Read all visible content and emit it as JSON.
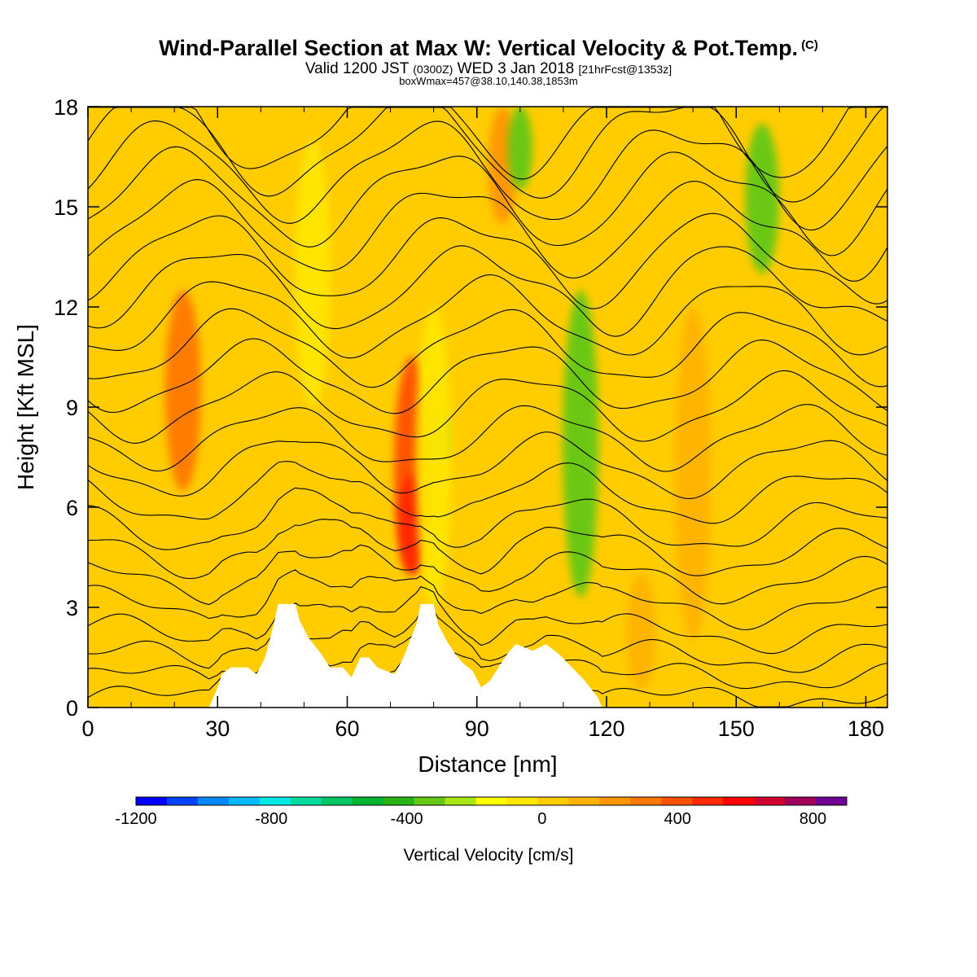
{
  "header": {
    "title": "Wind-Parallel Section at Max W: Vertical Velocity & Pot.Temp.",
    "title_suffix": "(C)",
    "valid_prefix": "Valid 1200 JST",
    "valid_utc": "(0300Z)",
    "valid_date": "WED 3 Jan 2018",
    "valid_fcst": "[21hrFcst@1353z]",
    "box_info": "boxWmax=457@38.10,140.38,1853m"
  },
  "chart_data": {
    "type": "heatmap",
    "xlabel": "Distance [nm]",
    "ylabel": "Height [Kft MSL]",
    "xlim": [
      0,
      185
    ],
    "ylim": [
      0,
      18
    ],
    "x_ticks": [
      "0",
      "30",
      "60",
      "90",
      "120",
      "150",
      "180"
    ],
    "y_ticks": [
      "0",
      "3",
      "6",
      "9",
      "12",
      "15",
      "18"
    ],
    "colorbar": {
      "label": "Vertical Velocity [cm/s]",
      "range": [
        -1200,
        900
      ],
      "tick_labels": [
        "-1200",
        "-800",
        "-400",
        "0",
        "400",
        "800"
      ],
      "colors": [
        "#0000ff",
        "#0044ff",
        "#0088ff",
        "#00bbff",
        "#00e8e8",
        "#00dca0",
        "#00c864",
        "#00b432",
        "#28b414",
        "#64c814",
        "#aae614",
        "#ffff00",
        "#ffe600",
        "#ffcc00",
        "#ffb300",
        "#ff9600",
        "#ff7800",
        "#ff5000",
        "#ff2800",
        "#ff0000",
        "#d2002d",
        "#a0005a",
        "#6e0096"
      ]
    },
    "vertical_velocity_features_cms": [
      {
        "x": 22,
        "y_range": [
          6.5,
          12.5
        ],
        "w": 300
      },
      {
        "x": 75,
        "y_range": [
          4.0,
          10.5
        ],
        "w": 400
      },
      {
        "x": 75,
        "y_range": [
          4.0,
          7.0
        ],
        "w": 457
      },
      {
        "x": 96,
        "y_range": [
          14.5,
          18.0
        ],
        "w": 250
      },
      {
        "x": 81,
        "y_range": [
          7.3,
          8.9
        ],
        "w": -300
      },
      {
        "x": 114,
        "y_range": [
          3.3,
          12.5
        ],
        "w": -300
      },
      {
        "x": 100,
        "y_range": [
          15.5,
          18.0
        ],
        "w": -300
      },
      {
        "x": 156,
        "y_range": [
          13.0,
          17.5
        ],
        "w": -300
      },
      {
        "x": 52,
        "y_range": [
          9.0,
          17.0
        ],
        "w": -100
      },
      {
        "x": 80,
        "y_range": [
          3.0,
          12.0
        ],
        "w": -100
      },
      {
        "x": 128,
        "y_range": [
          0.5,
          4.0
        ],
        "w": 150
      },
      {
        "x": 140,
        "y_range": [
          2.0,
          12.0
        ],
        "w": 100
      }
    ],
    "terrain_height_kft": [
      {
        "x": 0,
        "h": 0
      },
      {
        "x": 28,
        "h": 0
      },
      {
        "x": 30,
        "h": 0.6
      },
      {
        "x": 31,
        "h": 1.0
      },
      {
        "x": 33,
        "h": 1.2
      },
      {
        "x": 37,
        "h": 1.2
      },
      {
        "x": 39,
        "h": 1.0
      },
      {
        "x": 41,
        "h": 1.5
      },
      {
        "x": 43,
        "h": 2.5
      },
      {
        "x": 44,
        "h": 3.1
      },
      {
        "x": 48,
        "h": 3.1
      },
      {
        "x": 49,
        "h": 2.6
      },
      {
        "x": 51,
        "h": 2.1
      },
      {
        "x": 54,
        "h": 1.6
      },
      {
        "x": 56,
        "h": 1.2
      },
      {
        "x": 59,
        "h": 1.2
      },
      {
        "x": 61,
        "h": 0.9
      },
      {
        "x": 63,
        "h": 1.5
      },
      {
        "x": 65,
        "h": 1.5
      },
      {
        "x": 67,
        "h": 1.2
      },
      {
        "x": 71,
        "h": 1.0
      },
      {
        "x": 73,
        "h": 1.5
      },
      {
        "x": 76,
        "h": 2.5
      },
      {
        "x": 77,
        "h": 3.1
      },
      {
        "x": 80,
        "h": 3.1
      },
      {
        "x": 81,
        "h": 2.5
      },
      {
        "x": 83,
        "h": 2.0
      },
      {
        "x": 85,
        "h": 1.6
      },
      {
        "x": 87,
        "h": 1.3
      },
      {
        "x": 89,
        "h": 1.1
      },
      {
        "x": 91,
        "h": 0.6
      },
      {
        "x": 93,
        "h": 0.8
      },
      {
        "x": 95,
        "h": 1.2
      },
      {
        "x": 97,
        "h": 1.6
      },
      {
        "x": 99,
        "h": 1.9
      },
      {
        "x": 103,
        "h": 1.7
      },
      {
        "x": 106,
        "h": 1.9
      },
      {
        "x": 109,
        "h": 1.6
      },
      {
        "x": 112,
        "h": 1.2
      },
      {
        "x": 115,
        "h": 0.8
      },
      {
        "x": 118,
        "h": 0.3
      },
      {
        "x": 119,
        "h": 0
      },
      {
        "x": 185,
        "h": 0
      }
    ],
    "theta_contour_base_heights_kft": [
      0.3,
      0.9,
      1.5,
      2.2,
      3.0,
      3.8,
      4.6,
      5.4,
      6.3,
      7.2,
      8.1,
      9.0,
      9.9,
      10.8,
      11.7,
      12.6,
      13.5,
      14.4,
      15.3,
      16.1,
      16.9,
      17.6
    ]
  }
}
